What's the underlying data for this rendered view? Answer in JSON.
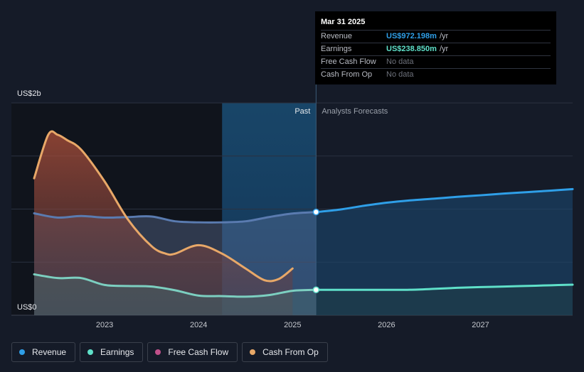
{
  "tooltip": {
    "date": "Mar 31 2025",
    "rows": [
      {
        "label": "Revenue",
        "value": "US$972.198m",
        "unit": "/yr",
        "color": "#2f9fe8"
      },
      {
        "label": "Earnings",
        "value": "US$238.850m",
        "unit": "/yr",
        "color": "#5fe0c9"
      },
      {
        "label": "Free Cash Flow",
        "value": "No data",
        "unit": "",
        "color": "#6d717b"
      },
      {
        "label": "Cash From Op",
        "value": "No data",
        "unit": "",
        "color": "#6d717b"
      }
    ]
  },
  "legend": [
    {
      "label": "Revenue",
      "color": "#2f9fe8"
    },
    {
      "label": "Earnings",
      "color": "#5fe0c9"
    },
    {
      "label": "Free Cash Flow",
      "color": "#c0508a"
    },
    {
      "label": "Cash From Op",
      "color": "#e8a868"
    }
  ],
  "chart_data": {
    "type": "area",
    "title": "",
    "ylabel_top": "US$2b",
    "ylabel_bottom": "US$0",
    "ylim": [
      0,
      2000
    ],
    "xlim": [
      2022.25,
      2027.98
    ],
    "x_ticks": [
      2023,
      2024,
      2025,
      2026,
      2027
    ],
    "x_tick_labels": [
      "2023",
      "2024",
      "2025",
      "2026",
      "2027"
    ],
    "past_label": "Past",
    "forecast_label": "Analysts Forecasts",
    "highlight_start": 2024.25,
    "divider_x": 2025.25,
    "series": [
      {
        "name": "Revenue",
        "color": "#2f9fe8",
        "x": [
          2022.25,
          2022.5,
          2022.75,
          2023.0,
          2023.25,
          2023.5,
          2023.75,
          2024.0,
          2024.25,
          2024.5,
          2024.75,
          2025.0,
          2025.25
        ],
        "values": [
          960,
          920,
          935,
          920,
          925,
          930,
          885,
          875,
          875,
          885,
          925,
          958,
          972
        ]
      },
      {
        "name": "Revenue forecast",
        "color": "#2f9fe8",
        "x": [
          2025.25,
          2025.5,
          2025.75,
          2026.0,
          2026.25,
          2026.5,
          2026.75,
          2027.0,
          2027.25,
          2027.5,
          2027.75,
          2027.98
        ],
        "values": [
          972,
          995,
          1030,
          1060,
          1082,
          1098,
          1115,
          1130,
          1146,
          1160,
          1174,
          1188
        ]
      },
      {
        "name": "Earnings",
        "color": "#5fe0c9",
        "x": [
          2022.25,
          2022.5,
          2022.75,
          2023.0,
          2023.25,
          2023.5,
          2023.75,
          2024.0,
          2024.25,
          2024.5,
          2024.75,
          2025.0,
          2025.25
        ],
        "values": [
          385,
          350,
          350,
          285,
          275,
          270,
          235,
          185,
          180,
          175,
          190,
          230,
          239
        ]
      },
      {
        "name": "Earnings forecast",
        "color": "#5fe0c9",
        "x": [
          2025.25,
          2025.5,
          2025.75,
          2026.0,
          2026.25,
          2026.5,
          2026.75,
          2027.0,
          2027.25,
          2027.5,
          2027.75,
          2027.98
        ],
        "values": [
          239,
          239,
          239,
          239,
          240,
          248,
          258,
          265,
          270,
          276,
          282,
          288
        ]
      },
      {
        "name": "Cash From Op",
        "color": "#e8a868",
        "x": [
          2022.25,
          2022.4,
          2022.5,
          2022.6,
          2022.75,
          2023.0,
          2023.25,
          2023.5,
          2023.65,
          2023.75,
          2024.0,
          2024.25,
          2024.5,
          2024.7,
          2024.85,
          2025.0
        ],
        "values": [
          1290,
          1700,
          1700,
          1650,
          1560,
          1260,
          900,
          650,
          580,
          580,
          660,
          580,
          440,
          330,
          340,
          440
        ]
      }
    ],
    "markers": [
      {
        "series": "Revenue",
        "x": 2025.25,
        "value": 972
      },
      {
        "series": "Earnings",
        "x": 2025.25,
        "value": 239
      }
    ]
  }
}
